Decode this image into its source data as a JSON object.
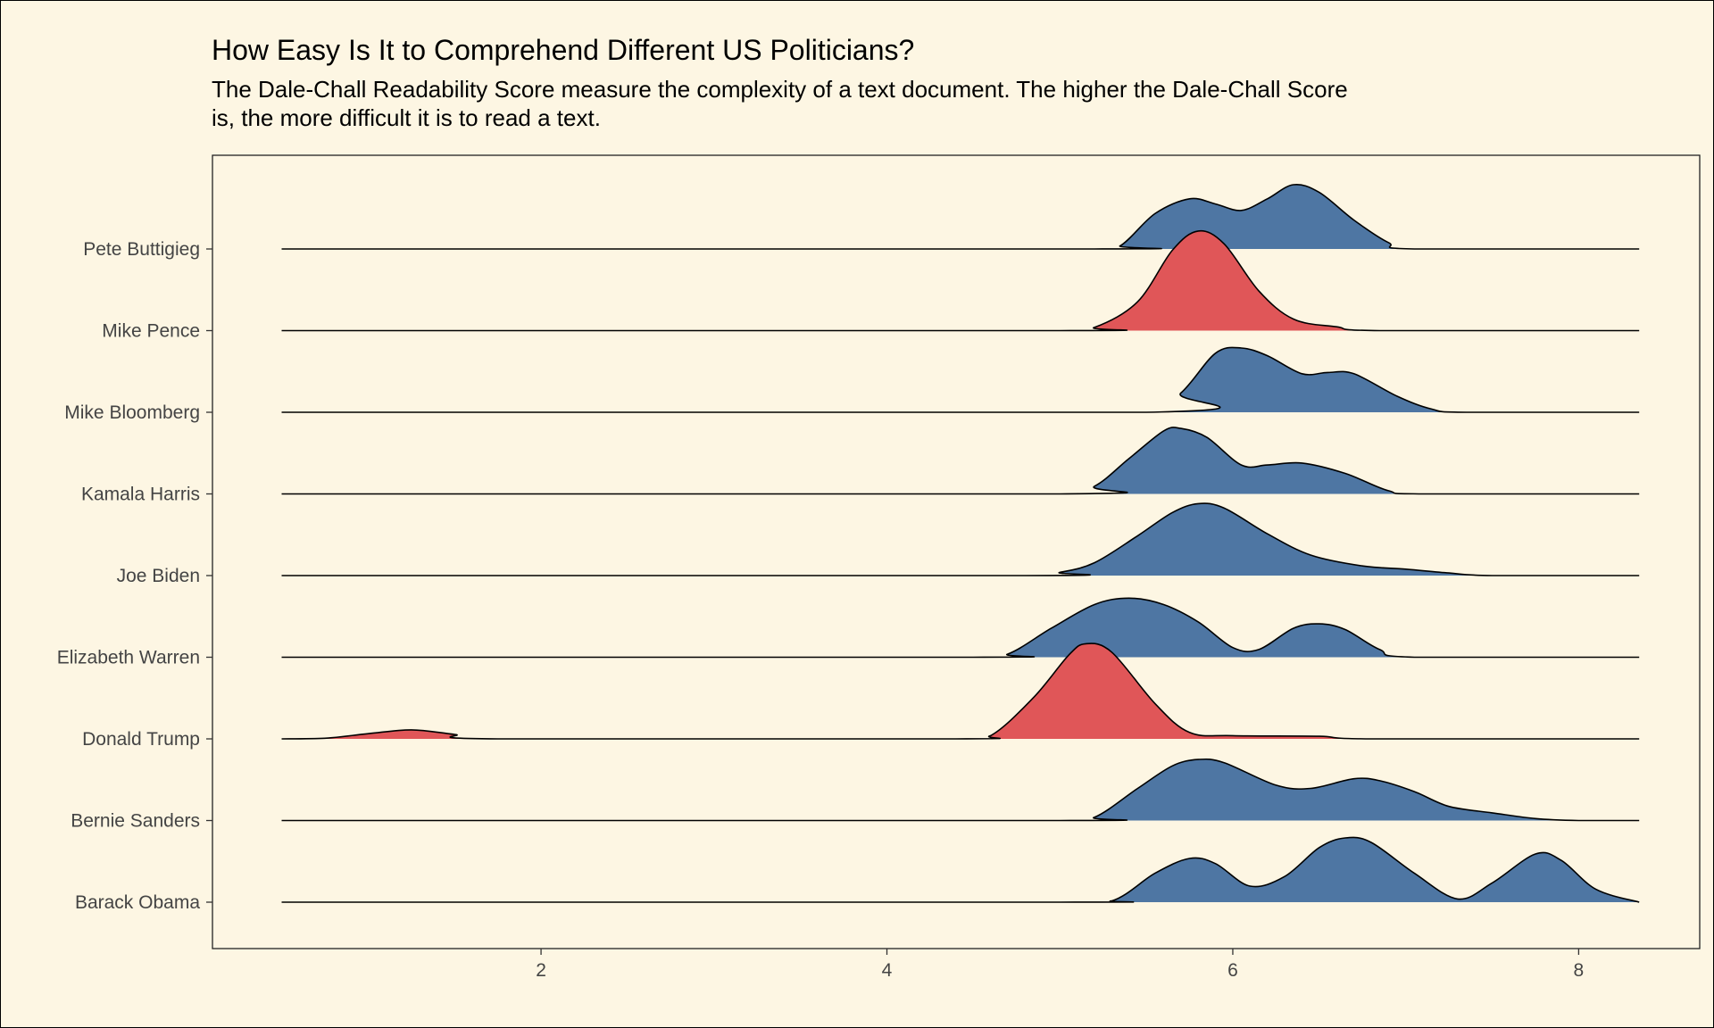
{
  "title": "How Easy Is It to Comprehend Different US Politicians?",
  "subtitle": "The Dale-Chall Readability Score measure the complexity of a text document. The higher the Dale-Chall Score is, the more difficult it is to read a text.",
  "colors": {
    "background": "#fdf6e3",
    "blue": "#4e76a3",
    "red": "#e05658"
  },
  "chart_data": {
    "type": "area",
    "subtype": "ridgeline",
    "title": "How Easy Is It to Comprehend Different US Politicians?",
    "subtitle": "The Dale-Chall Readability Score measure the complexity of a text document. The higher the Dale-Chall Score is, the more difficult it is to read a text.",
    "xlabel": "",
    "ylabel": "",
    "xlim": [
      0.1,
      8.7
    ],
    "x_ticks": [
      2,
      4,
      6,
      8
    ],
    "x_range_drawn": [
      0.5,
      8.35
    ],
    "categories": [
      "Barack Obama",
      "Bernie Sanders",
      "Donald Trump",
      "Elizabeth Warren",
      "Joe Biden",
      "Kamala Harris",
      "Mike Bloomberg",
      "Mike Pence",
      "Pete Buttigieg"
    ],
    "grid": false,
    "legend": "none",
    "series": [
      {
        "name": "Barack Obama",
        "color": "blue",
        "points": [
          [
            0.5,
            0
          ],
          [
            5.0,
            0
          ],
          [
            5.3,
            0.02
          ],
          [
            5.55,
            0.45
          ],
          [
            5.75,
            0.68
          ],
          [
            5.9,
            0.6
          ],
          [
            6.1,
            0.25
          ],
          [
            6.3,
            0.4
          ],
          [
            6.5,
            0.85
          ],
          [
            6.65,
            1.0
          ],
          [
            6.8,
            0.93
          ],
          [
            7.05,
            0.45
          ],
          [
            7.3,
            0.05
          ],
          [
            7.5,
            0.3
          ],
          [
            7.75,
            0.75
          ],
          [
            7.9,
            0.65
          ],
          [
            8.1,
            0.2
          ],
          [
            8.35,
            0
          ]
        ]
      },
      {
        "name": "Bernie Sanders",
        "color": "blue",
        "points": [
          [
            0.5,
            0
          ],
          [
            5.0,
            0
          ],
          [
            5.2,
            0.05
          ],
          [
            5.45,
            0.5
          ],
          [
            5.65,
            0.85
          ],
          [
            5.8,
            0.95
          ],
          [
            5.95,
            0.9
          ],
          [
            6.25,
            0.55
          ],
          [
            6.45,
            0.5
          ],
          [
            6.7,
            0.65
          ],
          [
            6.85,
            0.62
          ],
          [
            7.05,
            0.45
          ],
          [
            7.25,
            0.22
          ],
          [
            7.5,
            0.12
          ],
          [
            7.75,
            0.03
          ],
          [
            8.0,
            0
          ],
          [
            8.35,
            0
          ]
        ]
      },
      {
        "name": "Donald Trump",
        "color": "red",
        "points": [
          [
            0.5,
            0
          ],
          [
            0.75,
            0.01
          ],
          [
            1.0,
            0.08
          ],
          [
            1.25,
            0.14
          ],
          [
            1.5,
            0.07
          ],
          [
            1.75,
            0
          ],
          [
            4.4,
            0
          ],
          [
            4.6,
            0.05
          ],
          [
            4.85,
            0.65
          ],
          [
            5.05,
            1.3
          ],
          [
            5.15,
            1.48
          ],
          [
            5.3,
            1.35
          ],
          [
            5.55,
            0.55
          ],
          [
            5.75,
            0.1
          ],
          [
            6.0,
            0.05
          ],
          [
            6.5,
            0.04
          ],
          [
            6.8,
            0
          ],
          [
            8.35,
            0
          ]
        ]
      },
      {
        "name": "Elizabeth Warren",
        "color": "blue",
        "points": [
          [
            0.5,
            0
          ],
          [
            4.5,
            0
          ],
          [
            4.7,
            0.05
          ],
          [
            4.95,
            0.45
          ],
          [
            5.2,
            0.82
          ],
          [
            5.4,
            0.92
          ],
          [
            5.6,
            0.82
          ],
          [
            5.8,
            0.55
          ],
          [
            6.0,
            0.15
          ],
          [
            6.15,
            0.12
          ],
          [
            6.35,
            0.45
          ],
          [
            6.5,
            0.52
          ],
          [
            6.65,
            0.43
          ],
          [
            6.85,
            0.12
          ],
          [
            7.05,
            0
          ],
          [
            8.35,
            0
          ]
        ]
      },
      {
        "name": "Joe Biden",
        "color": "blue",
        "points": [
          [
            0.5,
            0
          ],
          [
            4.8,
            0
          ],
          [
            5.0,
            0.05
          ],
          [
            5.2,
            0.2
          ],
          [
            5.45,
            0.62
          ],
          [
            5.65,
            0.98
          ],
          [
            5.8,
            1.12
          ],
          [
            5.95,
            1.05
          ],
          [
            6.2,
            0.65
          ],
          [
            6.45,
            0.32
          ],
          [
            6.75,
            0.15
          ],
          [
            7.0,
            0.1
          ],
          [
            7.25,
            0.04
          ],
          [
            7.5,
            0
          ],
          [
            8.35,
            0
          ]
        ]
      },
      {
        "name": "Kamala Harris",
        "color": "blue",
        "points": [
          [
            0.5,
            0
          ],
          [
            5.0,
            0
          ],
          [
            5.2,
            0.12
          ],
          [
            5.4,
            0.55
          ],
          [
            5.6,
            0.98
          ],
          [
            5.7,
            1.02
          ],
          [
            5.85,
            0.88
          ],
          [
            6.05,
            0.45
          ],
          [
            6.2,
            0.45
          ],
          [
            6.4,
            0.48
          ],
          [
            6.65,
            0.32
          ],
          [
            6.9,
            0.05
          ],
          [
            7.1,
            0
          ],
          [
            8.35,
            0
          ]
        ]
      },
      {
        "name": "Mike Bloomberg",
        "color": "blue",
        "points": [
          [
            0.5,
            0
          ],
          [
            5.5,
            0
          ],
          [
            5.7,
            0.3
          ],
          [
            5.9,
            0.92
          ],
          [
            6.05,
            1.0
          ],
          [
            6.2,
            0.88
          ],
          [
            6.4,
            0.6
          ],
          [
            6.55,
            0.62
          ],
          [
            6.7,
            0.6
          ],
          [
            6.95,
            0.25
          ],
          [
            7.15,
            0.05
          ],
          [
            7.35,
            0
          ],
          [
            8.35,
            0
          ]
        ]
      },
      {
        "name": "Mike Pence",
        "color": "red",
        "points": [
          [
            0.5,
            0
          ],
          [
            5.0,
            0
          ],
          [
            5.2,
            0.05
          ],
          [
            5.45,
            0.45
          ],
          [
            5.65,
            1.25
          ],
          [
            5.8,
            1.55
          ],
          [
            5.95,
            1.35
          ],
          [
            6.15,
            0.62
          ],
          [
            6.35,
            0.18
          ],
          [
            6.6,
            0.06
          ],
          [
            6.85,
            0
          ],
          [
            8.35,
            0
          ]
        ]
      },
      {
        "name": "Pete Buttigieg",
        "color": "blue",
        "points": [
          [
            0.5,
            0
          ],
          [
            5.2,
            0
          ],
          [
            5.35,
            0.05
          ],
          [
            5.55,
            0.55
          ],
          [
            5.75,
            0.78
          ],
          [
            5.9,
            0.7
          ],
          [
            6.05,
            0.6
          ],
          [
            6.2,
            0.78
          ],
          [
            6.35,
            1.0
          ],
          [
            6.5,
            0.88
          ],
          [
            6.7,
            0.45
          ],
          [
            6.9,
            0.1
          ],
          [
            7.05,
            0
          ],
          [
            8.35,
            0
          ]
        ]
      }
    ]
  }
}
